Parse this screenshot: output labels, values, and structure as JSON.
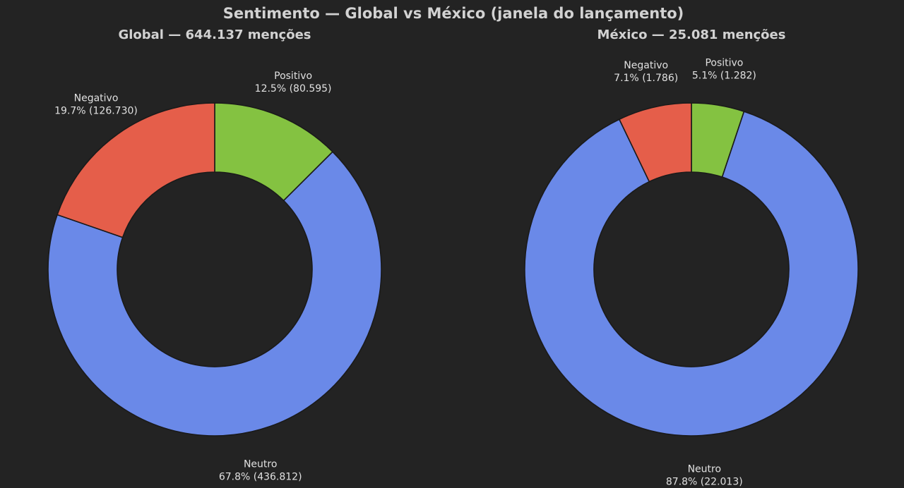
{
  "title": "Sentimento — Global vs México (janela do lançamento)",
  "colors": {
    "background": "#232323",
    "Positivo": "#84c241",
    "Neutro": "#6a89e8",
    "Negativo": "#e55e4a"
  },
  "chart_data": [
    {
      "type": "pie",
      "variant": "donut",
      "title": "Global — 644.137 menções",
      "start_angle_deg": 90,
      "direction": "clockwise",
      "slices": [
        {
          "name": "Positivo",
          "value": 80595,
          "label": "Positivo",
          "pct_label": "12.5% (80.595)"
        },
        {
          "name": "Neutro",
          "value": 436812,
          "label": "Neutro",
          "pct_label": "67.8% (436.812)"
        },
        {
          "name": "Negativo",
          "value": 126730,
          "label": "Negativo",
          "pct_label": "19.7% (126.730)"
        }
      ]
    },
    {
      "type": "pie",
      "variant": "donut",
      "title": "México — 25.081 menções",
      "start_angle_deg": 90,
      "direction": "clockwise",
      "slices": [
        {
          "name": "Positivo",
          "value": 1282,
          "label": "Positivo",
          "pct_label": "5.1% (1.282)"
        },
        {
          "name": "Neutro",
          "value": 22013,
          "label": "Neutro",
          "pct_label": "87.8% (22.013)"
        },
        {
          "name": "Negativo",
          "value": 1786,
          "label": "Negativo",
          "pct_label": "7.1% (1.786)"
        }
      ]
    }
  ]
}
